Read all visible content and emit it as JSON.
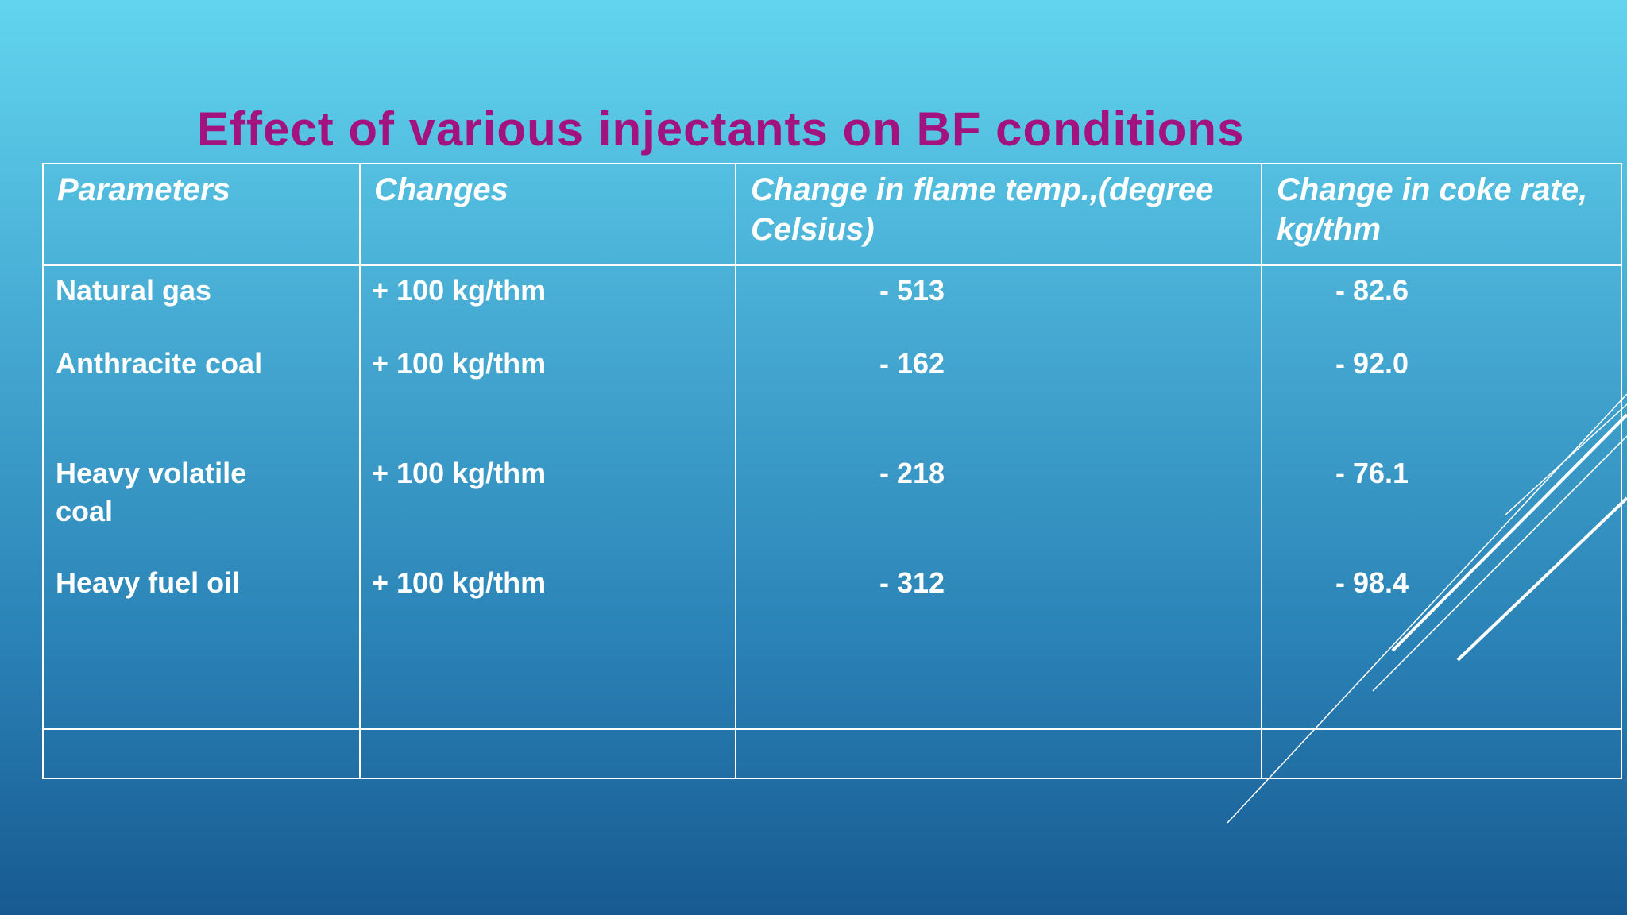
{
  "title": "Effect of various injectants on BF conditions",
  "table": {
    "header": [
      "Parameters",
      "Changes",
      "Change in flame temp.,(degree Celsius)",
      "Change in coke rate, kg/thm"
    ],
    "rows": [
      [
        "Natural gas",
        "+ 100 kg/thm",
        "- 513",
        "- 82.6"
      ],
      [
        "Anthracite coal",
        "+ 100 kg/thm",
        "- 162",
        "- 92.0"
      ],
      [
        "Heavy volatile coal",
        "+ 100 kg/thm",
        "- 218",
        "- 76.1"
      ],
      [
        "Heavy fuel oil",
        "+ 100 kg/thm",
        "- 312",
        "- 98.4"
      ]
    ]
  }
}
